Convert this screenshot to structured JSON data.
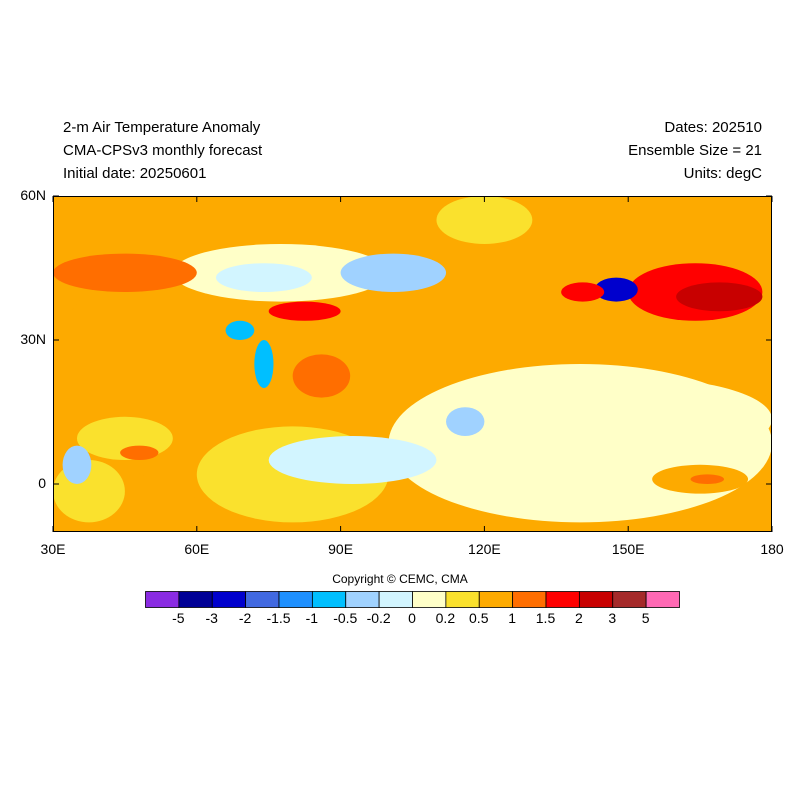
{
  "header": {
    "title": "2-m Air Temperature Anomaly",
    "model": "CMA-CPSv3 monthly forecast",
    "initial_date": "Initial date: 20250601",
    "dates": "Dates: 202510",
    "ensemble": "Ensemble Size = 21",
    "units": "Units: degC"
  },
  "map": {
    "lon_range": [
      30,
      180
    ],
    "lat_range": [
      -10,
      60
    ],
    "x_ticks": [
      {
        "value": 30,
        "label": "30E"
      },
      {
        "value": 60,
        "label": "60E"
      },
      {
        "value": 90,
        "label": "90E"
      },
      {
        "value": 120,
        "label": "120E"
      },
      {
        "value": 150,
        "label": "150E"
      },
      {
        "value": 180,
        "label": "180"
      }
    ],
    "y_ticks": [
      {
        "value": 60,
        "label": "60N"
      },
      {
        "value": 30,
        "label": "30N"
      },
      {
        "value": 0,
        "label": "0"
      }
    ],
    "background_color": "#fdaa00",
    "regions": [
      {
        "lon": [
          30,
          180
        ],
        "lat": [
          -10,
          60
        ],
        "level": 0.7
      },
      {
        "lon": [
          100,
          180
        ],
        "lat": [
          -8,
          25
        ],
        "level": 0.1
      },
      {
        "lon": [
          125,
          180
        ],
        "lat": [
          5,
          22
        ],
        "level": 0.1
      },
      {
        "lon": [
          60,
          100
        ],
        "lat": [
          -8,
          12
        ],
        "level": 0.3
      },
      {
        "lon": [
          75,
          110
        ],
        "lat": [
          0,
          10
        ],
        "level": -0.1
      },
      {
        "lon": [
          55,
          100
        ],
        "lat": [
          38,
          50
        ],
        "level": 0.05
      },
      {
        "lon": [
          90,
          112
        ],
        "lat": [
          40,
          48
        ],
        "level": -0.3
      },
      {
        "lon": [
          64,
          84
        ],
        "lat": [
          40,
          46
        ],
        "level": -0.15
      },
      {
        "lon": [
          110,
          130
        ],
        "lat": [
          50,
          60
        ],
        "level": 0.3
      },
      {
        "lon": [
          35,
          55
        ],
        "lat": [
          5,
          14
        ],
        "level": 0.3
      },
      {
        "lon": [
          30,
          45
        ],
        "lat": [
          -8,
          5
        ],
        "level": 0.3
      },
      {
        "lon": [
          32,
          38
        ],
        "lat": [
          0,
          8
        ],
        "level": -0.3
      },
      {
        "lon": [
          112,
          120
        ],
        "lat": [
          10,
          16
        ],
        "level": -0.5
      },
      {
        "lon": [
          80,
          92
        ],
        "lat": [
          18,
          27
        ],
        "level": 1.2
      },
      {
        "lon": [
          75,
          90
        ],
        "lat": [
          34,
          38
        ],
        "level": 1.6
      },
      {
        "lon": [
          30,
          60
        ],
        "lat": [
          40,
          48
        ],
        "level": 1.0
      },
      {
        "lon": [
          44,
          52
        ],
        "lat": [
          5,
          8
        ],
        "level": 1.2
      },
      {
        "lon": [
          150,
          178
        ],
        "lat": [
          34,
          46
        ],
        "level": 1.6
      },
      {
        "lon": [
          160,
          178
        ],
        "lat": [
          36,
          42
        ],
        "level": 2.2
      },
      {
        "lon": [
          143,
          152
        ],
        "lat": [
          38,
          43
        ],
        "level": -2.5
      },
      {
        "lon": [
          136,
          145
        ],
        "lat": [
          38,
          42
        ],
        "level": 1.6
      },
      {
        "lon": [
          155,
          175
        ],
        "lat": [
          -2,
          4
        ],
        "level": 0.7
      },
      {
        "lon": [
          163,
          170
        ],
        "lat": [
          0,
          2
        ],
        "level": 1.2
      },
      {
        "lon": [
          72,
          76
        ],
        "lat": [
          20,
          30
        ],
        "level": -0.7
      },
      {
        "lon": [
          66,
          72
        ],
        "lat": [
          30,
          34
        ],
        "level": -0.7
      }
    ]
  },
  "colorbar": {
    "colors": [
      "#8a2be2",
      "#000096",
      "#0000cd",
      "#4169e1",
      "#1e90ff",
      "#00bfff",
      "#a0d2ff",
      "#d2f5ff",
      "#ffffc8",
      "#fae12d",
      "#fdaa00",
      "#ff6e00",
      "#ff0000",
      "#c80000",
      "#a52a2a",
      "#ff69b4"
    ],
    "levels": [
      "-5",
      "-3",
      "-2",
      "-1.5",
      "-1",
      "-0.5",
      "-0.2",
      "0",
      "0.2",
      "0.5",
      "1",
      "1.5",
      "2",
      "3",
      "5"
    ]
  },
  "copyright": "Copyright © CEMC, CMA"
}
